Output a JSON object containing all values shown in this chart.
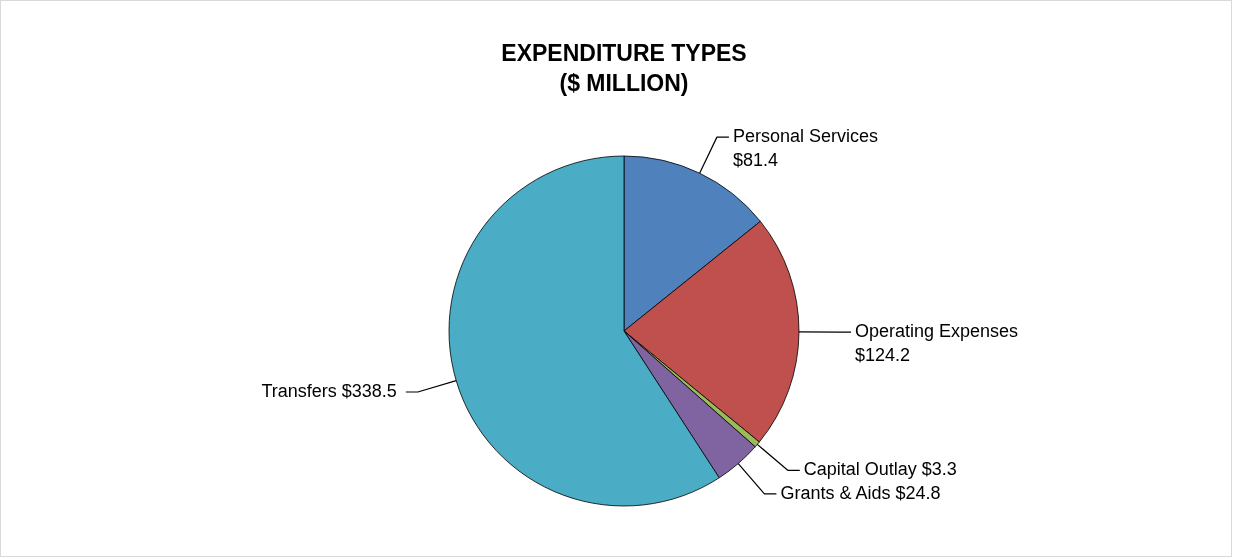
{
  "chart_data": {
    "type": "pie",
    "title": "EXPENDITURE TYPES\n($ MILLION)",
    "categories": [
      "Personal Services",
      "Operating Expenses",
      "Capital Outlay",
      "Grants & Aids",
      "Transfers"
    ],
    "values": [
      81.4,
      124.2,
      3.3,
      24.8,
      338.5
    ],
    "value_labels": [
      "$81.4",
      "$124.2",
      "$3.3",
      "$24.8",
      "$338.5"
    ],
    "colors": [
      "#4f81bd",
      "#c0504d",
      "#9bbb59",
      "#8064a2",
      "#4bacc6"
    ],
    "legend": false
  }
}
